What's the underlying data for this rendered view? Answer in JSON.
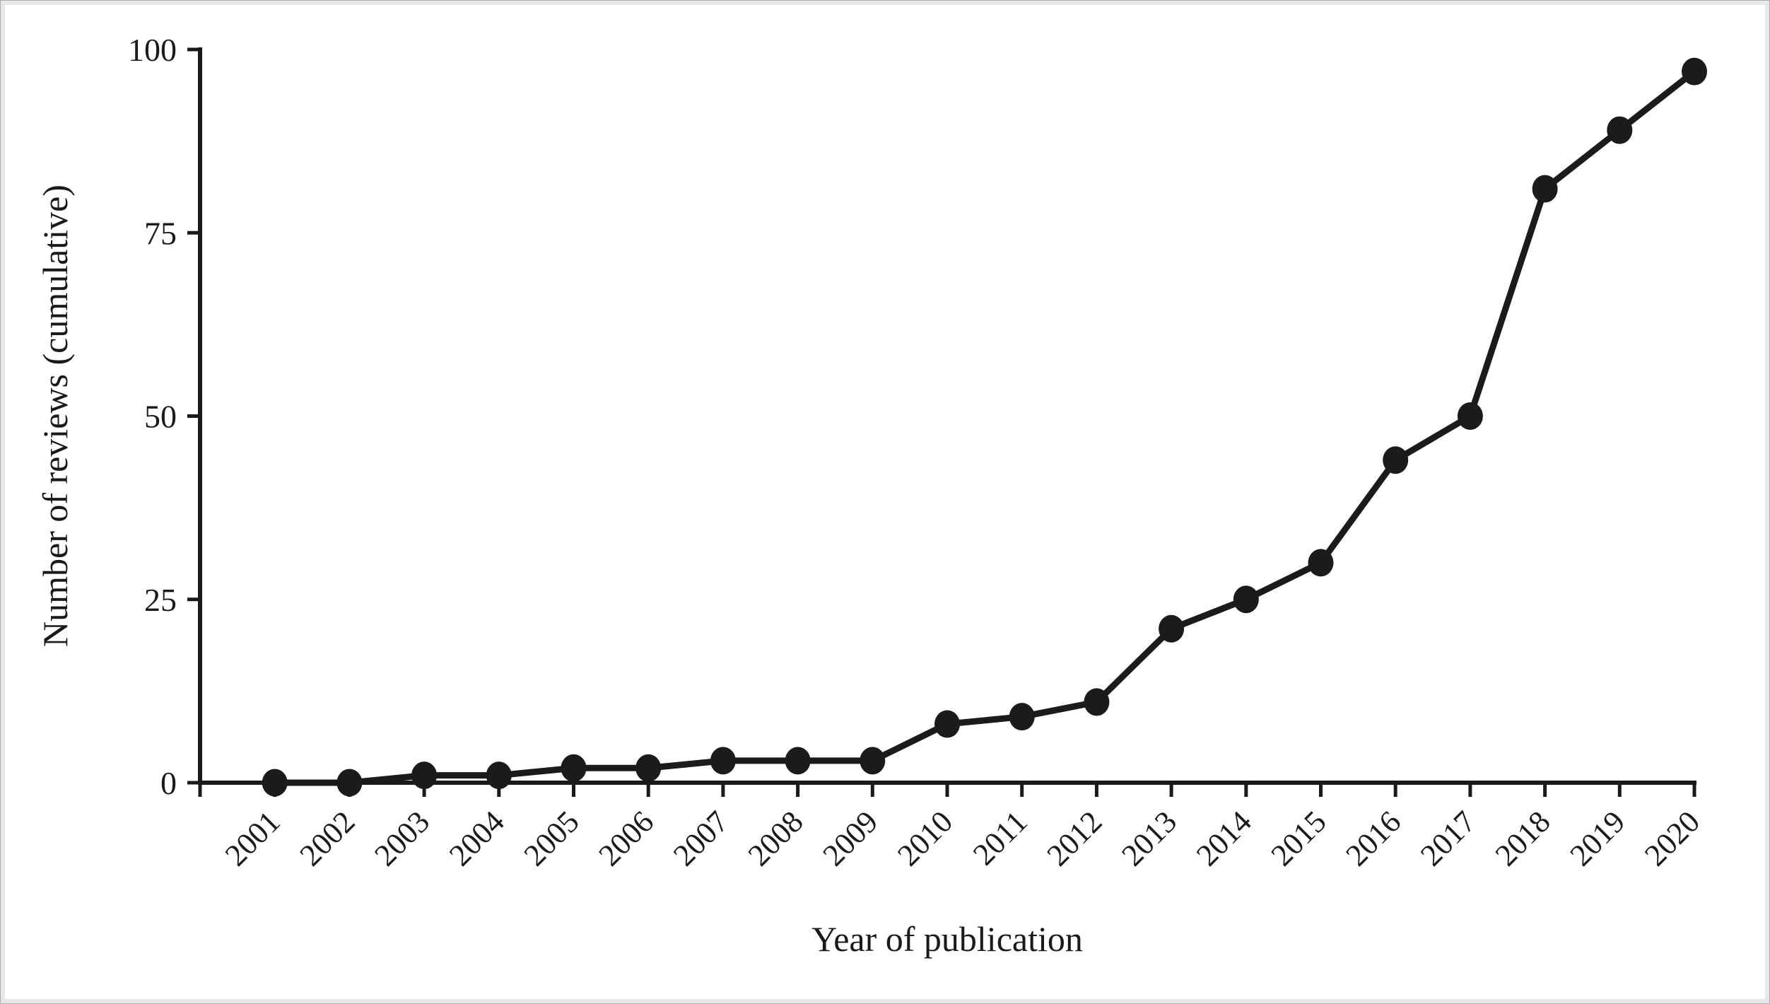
{
  "figure": {
    "kind": "line-chart-figure",
    "background_color": "#ffffff",
    "frame_color": "#e7e7ea",
    "frame_edge_color": "#aeaeb2",
    "ink_color": "#1a1a1a"
  },
  "chart_data": {
    "type": "line",
    "title": "",
    "xlabel": "Year of publication",
    "ylabel": "Number of reviews (cumulative)",
    "x": [
      "2001",
      "2002",
      "2003",
      "2004",
      "2005",
      "2006",
      "2007",
      "2008",
      "2009",
      "2010",
      "2011",
      "2012",
      "2013",
      "2014",
      "2015",
      "2016",
      "2017",
      "2018",
      "2019",
      "2020"
    ],
    "series": [
      {
        "name": "Cumulative number of reviews",
        "values": [
          0,
          0,
          1,
          1,
          2,
          2,
          3,
          3,
          3,
          8,
          9,
          11,
          21,
          25,
          30,
          44,
          50,
          81,
          89,
          97
        ]
      }
    ],
    "ylim": [
      0,
      100
    ],
    "yticks": [
      0,
      25,
      50,
      75,
      100
    ],
    "grid": false,
    "legend": false,
    "marker": "filled-circle",
    "line_color": "#1b1b1b",
    "marker_color": "#1b1b1b"
  }
}
